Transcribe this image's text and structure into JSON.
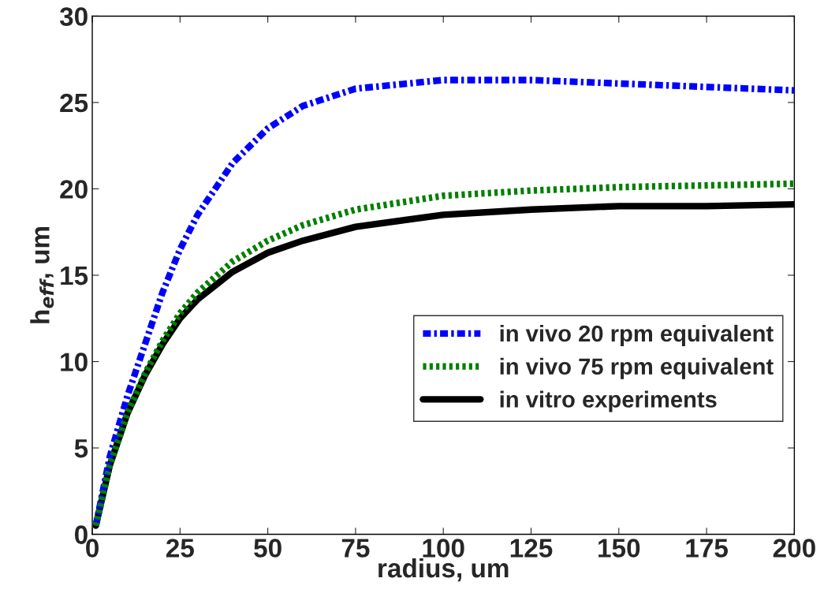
{
  "chart_data": {
    "type": "line",
    "xlabel": "radius, um",
    "ylabel": "h$_{eff}$, um",
    "xlim": [
      0,
      200
    ],
    "xticks": [
      0,
      25,
      50,
      75,
      100,
      125,
      150,
      175,
      200
    ],
    "ylim": [
      0,
      30
    ],
    "yticks": [
      0,
      5,
      10,
      15,
      20,
      25,
      30
    ],
    "grid": false,
    "legend": "right",
    "series": [
      {
        "name": "in vivo 20 rpm equivalent",
        "color": "#0000ff",
        "line_style": "dashdot",
        "x": [
          1,
          5,
          10,
          15,
          20,
          25,
          30,
          40,
          50,
          60,
          75,
          100,
          125,
          150,
          175,
          200
        ],
        "values": [
          0.5,
          4.5,
          8,
          11,
          14,
          16.5,
          18.5,
          21.5,
          23.5,
          24.8,
          25.8,
          26.3,
          26.3,
          26.1,
          25.9,
          25.7
        ]
      },
      {
        "name": "in vivo 75 rpm equivalent",
        "color": "#007f00",
        "line_style": "dotted",
        "x": [
          1,
          5,
          10,
          15,
          20,
          25,
          30,
          40,
          50,
          60,
          75,
          100,
          125,
          150,
          175,
          200
        ],
        "values": [
          0.5,
          4,
          7,
          9.3,
          11.2,
          12.8,
          14,
          15.8,
          17,
          17.9,
          18.8,
          19.6,
          19.9,
          20.1,
          20.2,
          20.3
        ]
      },
      {
        "name": "in vitro experiments",
        "color": "#000000",
        "line_style": "solid",
        "x": [
          1,
          5,
          10,
          15,
          20,
          25,
          30,
          40,
          50,
          60,
          75,
          100,
          125,
          150,
          175,
          200
        ],
        "values": [
          0.5,
          4,
          7,
          9.2,
          11,
          12.5,
          13.6,
          15.2,
          16.3,
          17,
          17.8,
          18.5,
          18.8,
          19,
          19,
          19.1
        ]
      }
    ]
  }
}
